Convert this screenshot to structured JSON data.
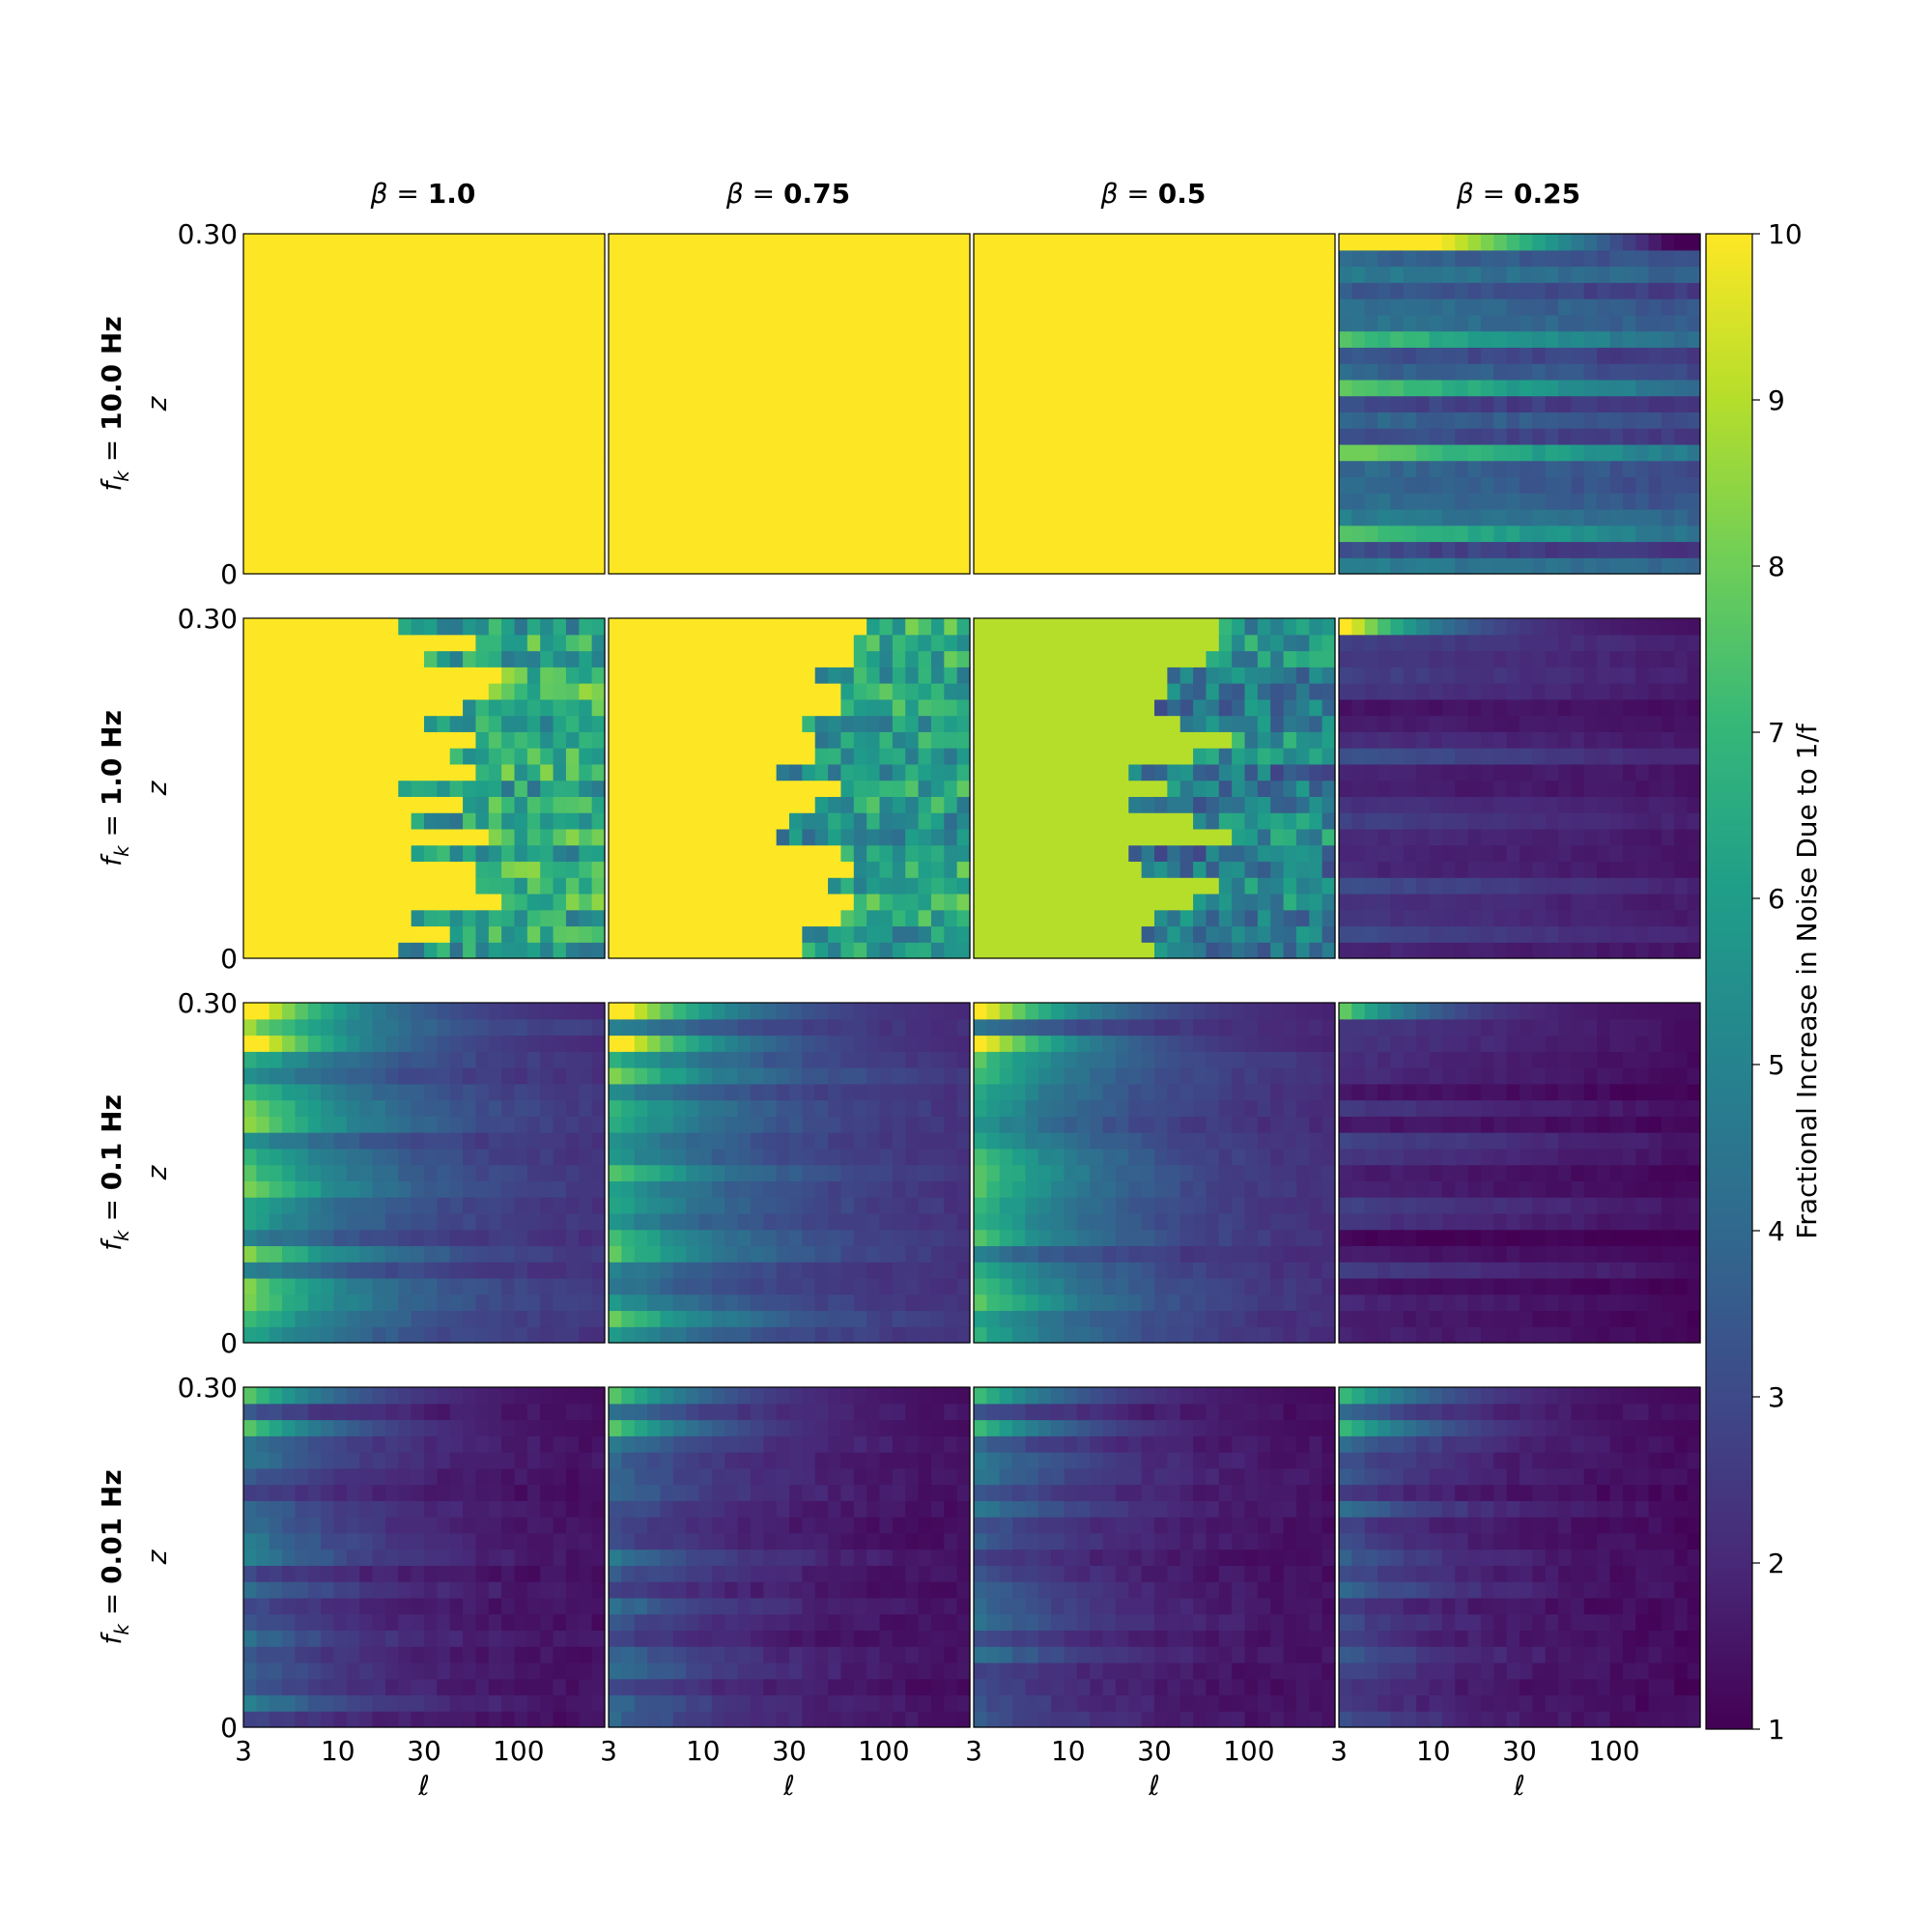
{
  "chart_data": {
    "type": "heatmap",
    "description_layout": "4x4 grid of heatmaps, shared colorbar",
    "columns": [
      {
        "title_prefix": "β",
        "title": "β = 1.0",
        "beta": 1.0,
        "value_text": "1.0"
      },
      {
        "title_prefix": "β",
        "title": "β = 0.75",
        "beta": 0.75,
        "value_text": "0.75"
      },
      {
        "title_prefix": "β",
        "title": "β = 0.5",
        "beta": 0.5,
        "value_text": "0.5"
      },
      {
        "title_prefix": "β",
        "title": "β = 0.25",
        "beta": 0.25,
        "value_text": "0.25"
      }
    ],
    "rows": [
      {
        "label": "f_k = 10.0 Hz",
        "fk": 10.0,
        "value_text": "10.0 Hz"
      },
      {
        "label": "f_k = 1.0 Hz",
        "fk": 1.0,
        "value_text": "1.0 Hz"
      },
      {
        "label": "f_k = 0.1 Hz",
        "fk": 0.1,
        "value_text": "0.1 Hz"
      },
      {
        "label": "f_k = 0.01 Hz",
        "fk": 0.01,
        "value_text": "0.01 Hz"
      }
    ],
    "xlabel": "ℓ",
    "ylabel": "z",
    "x_scale": "log",
    "xlim": [
      3,
      300
    ],
    "x_ticks": [
      3,
      10,
      30,
      100
    ],
    "x_tick_labels": [
      "3",
      "10",
      "30",
      "100"
    ],
    "ylim": [
      0,
      0.3
    ],
    "y_tick_labels": [
      "0",
      "0.30"
    ],
    "colormap": "viridis",
    "colorbar": {
      "label": "Fractional Increase in Noise Due to 1/f",
      "range": [
        1,
        10
      ],
      "ticks": [
        "1",
        "2",
        "3",
        "4",
        "5",
        "6",
        "7",
        "8",
        "9",
        "10"
      ]
    },
    "panel_summary": [
      [
        {
          "pattern": "saturated",
          "level": 10
        },
        {
          "pattern": "saturated",
          "level": 10
        },
        {
          "pattern": "saturated",
          "level": 10
        },
        {
          "pattern": "banded_mid",
          "level": 3.5,
          "top_band": 10
        }
      ],
      [
        {
          "pattern": "gradient_right",
          "level": 10,
          "right_level": 6.5
        },
        {
          "pattern": "gradient_right",
          "level": 10,
          "right_level": 6
        },
        {
          "pattern": "gradient_right",
          "level": 8,
          "right_level": 5
        },
        {
          "pattern": "low",
          "level": 1.6,
          "top_band": 10
        }
      ],
      [
        {
          "pattern": "decay_right",
          "left_level": 5.5,
          "right_level": 2,
          "top_band": 10
        },
        {
          "pattern": "decay_right",
          "left_level": 5,
          "right_level": 2,
          "top_band": 10
        },
        {
          "pattern": "decay_right",
          "left_level": 5,
          "right_level": 1.8,
          "top_band": 9.5
        },
        {
          "pattern": "low",
          "level": 1.2,
          "top_band": 7
        }
      ],
      [
        {
          "pattern": "decay_right",
          "left_level": 3,
          "right_level": 1.2,
          "top_band": 7
        },
        {
          "pattern": "decay_right",
          "left_level": 3,
          "right_level": 1.2,
          "top_band": 7
        },
        {
          "pattern": "decay_right",
          "left_level": 3,
          "right_level": 1.2,
          "top_band": 6.5
        },
        {
          "pattern": "decay_right",
          "left_level": 2.5,
          "right_level": 1.1,
          "top_band": 6.5
        }
      ]
    ]
  },
  "colors": {
    "viridis": [
      "#440154",
      "#482878",
      "#3e4989",
      "#31688e",
      "#26828e",
      "#1f9e89",
      "#35b779",
      "#6ece58",
      "#b5de2b",
      "#fde725"
    ]
  }
}
